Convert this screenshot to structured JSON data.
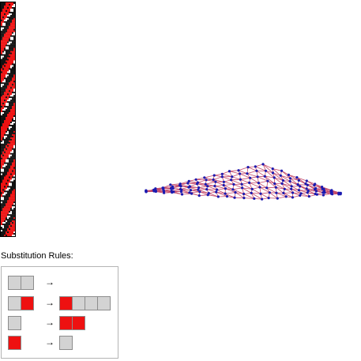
{
  "colors": {
    "state_0": "#d3d3d3",
    "state_1": "#ee1111",
    "evolution_dark": "#111111",
    "graph_edge": "#c44a6a",
    "graph_vertex": "#1a1ab0"
  },
  "evolution": {
    "rows": 150,
    "cells_per_row": 10
  },
  "rules": {
    "title": "Substitution Rules:",
    "arrow": "→",
    "items": [
      {
        "lhs": [
          0,
          0
        ],
        "rhs": []
      },
      {
        "lhs": [
          0,
          1
        ],
        "rhs": [
          1,
          0,
          0,
          0
        ]
      },
      {
        "lhs": [
          0
        ],
        "rhs": [
          1,
          1
        ]
      },
      {
        "lhs": [
          1
        ],
        "rhs": [
          0
        ]
      }
    ]
  },
  "graph": {
    "icon": "net-mesh-icon",
    "grid_rows": 7,
    "grid_cols": 24
  }
}
